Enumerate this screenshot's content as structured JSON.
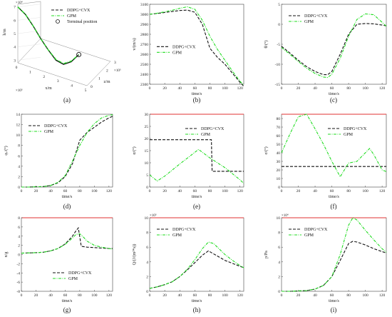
{
  "figure": {
    "colors": {
      "ddpg": "#111111",
      "gpm": "#22dd22",
      "limit": "#e03030",
      "frame": "#444444"
    },
    "legend_ddpg": "DDPG+CVX",
    "legend_gpm": "GPM"
  },
  "chart_data": [
    {
      "id": "a",
      "panel_label": "(a)",
      "type": "line",
      "xlabel": "x/m",
      "ylabel": "h/m",
      "zlabel": "z/m",
      "x_scale": "×10⁵",
      "y_scale": "×10⁴",
      "z_scale": "×10⁵",
      "xticks": [
        "0",
        "1",
        "2",
        "3",
        "4",
        "5"
      ],
      "yticks": [
        "3",
        "4",
        "5",
        "6",
        "7"
      ],
      "zticks": [
        "0",
        "1",
        "2",
        "3"
      ],
      "legend": [
        "DDPG+CVX",
        "GPM",
        "Terminal position"
      ],
      "series": [
        {
          "name": "DDPG+CVX",
          "x": [
            0,
            0.5,
            1,
            1.5,
            2,
            2.5,
            3,
            3.5,
            4
          ],
          "y": [
            7,
            6.5,
            5.7,
            4.8,
            4.0,
            3.3,
            3.05,
            3.3,
            3.9
          ]
        },
        {
          "name": "GPM",
          "x": [
            0,
            0.5,
            1,
            1.5,
            2,
            2.5,
            3,
            3.5,
            4
          ],
          "y": [
            7,
            6.5,
            5.7,
            4.8,
            4.0,
            3.35,
            3.1,
            3.35,
            3.9
          ]
        }
      ],
      "terminal_point": {
        "x": 4,
        "y": 3.9
      }
    },
    {
      "id": "b",
      "panel_label": "(b)",
      "type": "line",
      "xlabel": "time/s",
      "ylabel": "v/(m/s)",
      "xlim": [
        0,
        125
      ],
      "ylim": [
        2300,
        3100
      ],
      "xticks": [
        0,
        20,
        40,
        60,
        80,
        100,
        120
      ],
      "yticks": [
        2300,
        2400,
        2500,
        2600,
        2700,
        2800,
        2900,
        3000,
        3100
      ],
      "legend_pos": "bottom-left",
      "series": [
        {
          "name": "DDPG+CVX",
          "x": [
            0,
            10,
            20,
            30,
            40,
            50,
            60,
            70,
            80,
            90,
            100,
            110,
            120,
            125
          ],
          "y": [
            3000,
            3008,
            3018,
            3028,
            3038,
            3042,
            3020,
            2900,
            2660,
            2570,
            2500,
            2410,
            2320,
            2280
          ]
        },
        {
          "name": "GPM",
          "x": [
            0,
            10,
            20,
            30,
            40,
            50,
            60,
            70,
            80,
            90,
            100,
            110,
            120,
            125
          ],
          "y": [
            3000,
            3010,
            3025,
            3040,
            3060,
            3075,
            3050,
            2940,
            2780,
            2650,
            2540,
            2430,
            2330,
            2290
          ]
        }
      ]
    },
    {
      "id": "c",
      "panel_label": "(c)",
      "type": "line",
      "xlabel": "time/s",
      "ylabel": "θ/(°)",
      "xlim": [
        0,
        125
      ],
      "ylim": [
        -15,
        5
      ],
      "xticks": [
        0,
        20,
        40,
        60,
        80,
        100,
        120
      ],
      "yticks": [
        -15,
        -10,
        -5,
        0,
        5
      ],
      "legend_pos": "top-left",
      "series": [
        {
          "name": "DDPG+CVX",
          "x": [
            0,
            10,
            20,
            30,
            40,
            50,
            55,
            60,
            70,
            80,
            90,
            100,
            110,
            120,
            125
          ],
          "y": [
            -5.5,
            -7.2,
            -9.0,
            -10.6,
            -11.8,
            -12.6,
            -12.6,
            -11.8,
            -7.5,
            -2.5,
            0,
            0.2,
            0.1,
            -0.2,
            -0.4
          ]
        },
        {
          "name": "GPM",
          "x": [
            0,
            10,
            20,
            30,
            40,
            50,
            55,
            60,
            70,
            80,
            90,
            100,
            110,
            120,
            125
          ],
          "y": [
            -5.8,
            -7.5,
            -9.3,
            -11.0,
            -12.3,
            -13.2,
            -13.3,
            -12.5,
            -8.5,
            -3.0,
            1.2,
            2.6,
            2.4,
            0.5,
            -0.5
          ]
        }
      ]
    },
    {
      "id": "d",
      "panel_label": "(d)",
      "type": "line",
      "xlabel": "time/s",
      "ylabel": "φᵥ/(°)",
      "xlim": [
        0,
        125
      ],
      "ylim": [
        0,
        14
      ],
      "xticks": [
        0,
        20,
        40,
        60,
        80,
        100,
        120
      ],
      "yticks": [
        0,
        2,
        4,
        6,
        8,
        10,
        12,
        14
      ],
      "legend_pos": "top-left",
      "series": [
        {
          "name": "DDPG+CVX",
          "x": [
            0,
            10,
            20,
            30,
            40,
            50,
            60,
            70,
            80,
            90,
            100,
            110,
            120,
            125
          ],
          "y": [
            0,
            0,
            0.05,
            0.1,
            0.3,
            0.8,
            2.0,
            4.5,
            9.0,
            10.5,
            11.5,
            12.5,
            13.3,
            13.6
          ]
        },
        {
          "name": "GPM",
          "x": [
            0,
            10,
            20,
            30,
            40,
            50,
            60,
            70,
            80,
            90,
            100,
            110,
            120,
            125
          ],
          "y": [
            0,
            0,
            0.05,
            0.1,
            0.3,
            0.9,
            2.2,
            5.0,
            8.0,
            10.5,
            12.2,
            13.3,
            13.8,
            13.9
          ]
        }
      ]
    },
    {
      "id": "e",
      "panel_label": "(e)",
      "type": "line",
      "xlabel": "time/s",
      "ylabel": "α/(°)",
      "xlim": [
        0,
        125
      ],
      "ylim": [
        0,
        30
      ],
      "xticks": [
        0,
        20,
        40,
        60,
        80,
        100,
        120
      ],
      "yticks": [
        0,
        5,
        10,
        15,
        20,
        25,
        30
      ],
      "limit": 30,
      "legend_pos": "top-right",
      "series": [
        {
          "name": "DDPG+CVX",
          "x": [
            0,
            20,
            40,
            60,
            82,
            83,
            100,
            120,
            125
          ],
          "y": [
            19.5,
            19.5,
            19.5,
            19.5,
            19.5,
            6.5,
            6.5,
            6.5,
            6.5
          ]
        },
        {
          "name": "GPM",
          "x": [
            0,
            10,
            20,
            40,
            65,
            80,
            100,
            120,
            125
          ],
          "y": [
            5,
            2.5,
            4.5,
            9.5,
            15.5,
            12,
            8,
            3,
            1.5
          ]
        }
      ]
    },
    {
      "id": "f",
      "panel_label": "(f)",
      "type": "line",
      "xlabel": "time/s",
      "ylabel": "σ/(°)",
      "xlim": [
        0,
        125
      ],
      "ylim": [
        0,
        85
      ],
      "xticks": [
        0,
        20,
        40,
        60,
        80,
        100,
        120
      ],
      "yticks": [
        0,
        10,
        20,
        30,
        40,
        50,
        60,
        70,
        80
      ],
      "limit": 85,
      "legend_pos": "top-right",
      "series": [
        {
          "name": "DDPG+CVX",
          "x": [
            0,
            20,
            40,
            60,
            80,
            100,
            120,
            125
          ],
          "y": [
            24,
            24,
            24,
            24,
            24,
            24,
            24,
            24
          ]
        },
        {
          "name": "GPM",
          "x": [
            0,
            10,
            20,
            30,
            40,
            50,
            60,
            70,
            75,
            80,
            90,
            100,
            105,
            110,
            120,
            125
          ],
          "y": [
            40,
            62,
            82,
            85,
            68,
            50,
            30,
            12,
            20,
            28,
            30,
            40,
            45,
            38,
            20,
            18
          ]
        }
      ]
    },
    {
      "id": "g",
      "panel_label": "(g)",
      "type": "line",
      "xlabel": "time/s",
      "ylabel": "n/g",
      "xlim": [
        0,
        125
      ],
      "ylim": [
        -8,
        8
      ],
      "xticks": [
        0,
        20,
        40,
        60,
        80,
        100,
        120
      ],
      "yticks": [
        -8,
        -6,
        -4,
        -2,
        0,
        2,
        4,
        6,
        8
      ],
      "limit": 8,
      "legend_pos": "bottom-right",
      "series": [
        {
          "name": "DDPG+CVX",
          "x": [
            0,
            10,
            20,
            30,
            40,
            50,
            60,
            70,
            75,
            78,
            82,
            90,
            100,
            110,
            120,
            125
          ],
          "y": [
            0.3,
            0.35,
            0.4,
            0.5,
            0.8,
            1.3,
            2.3,
            4.0,
            5.2,
            5.8,
            1.8,
            1.6,
            1.5,
            1.4,
            1.3,
            1.3
          ]
        },
        {
          "name": "GPM",
          "x": [
            0,
            10,
            20,
            30,
            40,
            50,
            60,
            70,
            75,
            80,
            85,
            90,
            100,
            110,
            120,
            125
          ],
          "y": [
            0.3,
            0.35,
            0.4,
            0.5,
            0.8,
            1.3,
            2.2,
            3.6,
            4.4,
            4.5,
            3.8,
            2.9,
            2.0,
            1.6,
            1.3,
            1.2
          ]
        }
      ]
    },
    {
      "id": "h",
      "panel_label": "(h)",
      "type": "line",
      "xlabel": "time/s",
      "ylabel": "Q/(J/(m²*s))",
      "y_scale": "×10⁵",
      "xlim": [
        0,
        125
      ],
      "ylim": [
        0,
        10
      ],
      "xticks": [
        0,
        20,
        40,
        60,
        80,
        100,
        120
      ],
      "yticks": [
        0,
        2,
        4,
        6,
        8,
        10
      ],
      "limit": 10,
      "legend_pos": "top-left",
      "series": [
        {
          "name": "DDPG+CVX",
          "x": [
            0,
            10,
            20,
            30,
            40,
            50,
            60,
            70,
            78,
            90,
            100,
            110,
            120,
            125
          ],
          "y": [
            0.4,
            0.6,
            0.9,
            1.3,
            2.0,
            2.9,
            3.9,
            4.9,
            5.5,
            4.8,
            4.2,
            3.8,
            3.4,
            3.2
          ]
        },
        {
          "name": "GPM",
          "x": [
            0,
            10,
            20,
            30,
            40,
            50,
            60,
            70,
            78,
            85,
            90,
            100,
            110,
            120,
            125
          ],
          "y": [
            0.4,
            0.6,
            0.9,
            1.3,
            2.0,
            3.0,
            4.3,
            5.8,
            6.7,
            6.5,
            6.0,
            5.0,
            4.2,
            3.5,
            3.2
          ]
        }
      ]
    },
    {
      "id": "i",
      "panel_label": "(i)",
      "type": "line",
      "xlabel": "time/s",
      "ylabel": "p/Pa",
      "y_scale": "×10⁴",
      "xlim": [
        0,
        125
      ],
      "ylim": [
        0,
        10
      ],
      "xticks": [
        0,
        20,
        40,
        60,
        80,
        100,
        120
      ],
      "yticks": [
        0,
        2,
        4,
        6,
        8,
        10
      ],
      "limit": 10,
      "legend_pos": "top-left",
      "series": [
        {
          "name": "DDPG+CVX",
          "x": [
            0,
            10,
            20,
            30,
            40,
            50,
            60,
            70,
            80,
            85,
            90,
            100,
            110,
            120,
            125
          ],
          "y": [
            0,
            0,
            0.05,
            0.1,
            0.3,
            0.8,
            2.0,
            4.2,
            6.5,
            6.8,
            6.7,
            6.3,
            5.8,
            5.4,
            5.2
          ]
        },
        {
          "name": "GPM",
          "x": [
            0,
            10,
            20,
            30,
            40,
            50,
            60,
            70,
            80,
            85,
            90,
            100,
            110,
            120,
            125
          ],
          "y": [
            0,
            0,
            0.05,
            0.1,
            0.3,
            0.8,
            2.0,
            5.0,
            9.0,
            10.0,
            9.7,
            8.3,
            7.0,
            5.8,
            5.3
          ]
        }
      ]
    }
  ]
}
